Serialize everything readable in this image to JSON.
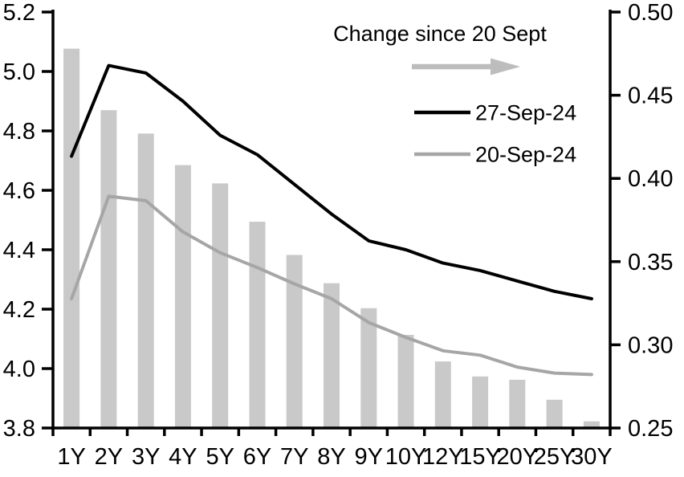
{
  "chart_data": {
    "type": "combo",
    "title": "",
    "categories": [
      "1Y",
      "2Y",
      "3Y",
      "4Y",
      "5Y",
      "6Y",
      "7Y",
      "8Y",
      "9Y",
      "10Y",
      "12Y",
      "15Y",
      "20Y",
      "25Y",
      "30Y"
    ],
    "series": [
      {
        "name": "Change since 20 Sept",
        "type": "bar",
        "axis": "right",
        "color": "#c9c9c9",
        "values": [
          0.478,
          0.441,
          0.427,
          0.408,
          0.397,
          0.374,
          0.354,
          0.337,
          0.322,
          0.306,
          0.29,
          0.281,
          0.279,
          0.267,
          0.254
        ]
      },
      {
        "name": "27-Sep-24",
        "type": "line",
        "axis": "left",
        "color": "#000000",
        "stroke_width": 4,
        "values": [
          4.715,
          5.02,
          4.995,
          4.9,
          4.785,
          4.72,
          4.62,
          4.52,
          4.43,
          4.4,
          4.355,
          4.33,
          4.295,
          4.26,
          4.235
        ]
      },
      {
        "name": "20-Sep-24",
        "type": "line",
        "axis": "left",
        "color": "#a6a6a6",
        "stroke_width": 4,
        "values": [
          4.235,
          4.58,
          4.565,
          4.46,
          4.39,
          4.34,
          4.285,
          4.235,
          4.155,
          4.105,
          4.06,
          4.045,
          4.005,
          3.985,
          3.98
        ]
      }
    ],
    "left_axis": {
      "min": 3.8,
      "max": 5.2,
      "step": 0.2,
      "tick_labels": [
        "3.8",
        "4.0",
        "4.2",
        "4.4",
        "4.6",
        "4.8",
        "5.0",
        "5.2"
      ]
    },
    "right_axis": {
      "min": 0.25,
      "max": 0.5,
      "step": 0.05,
      "tick_labels": [
        "0.25",
        "0.30",
        "0.35",
        "0.40",
        "0.45",
        "0.50"
      ]
    },
    "legend": {
      "position": "top-center-inside",
      "title": "Change since 20 Sept",
      "arrow_color": "#bdbdbd",
      "items": [
        {
          "label": "27-Sep-24",
          "color": "#000000"
        },
        {
          "label": "20-Sep-24",
          "color": "#a6a6a6"
        }
      ]
    },
    "grid": false,
    "axis_color": "#000000"
  }
}
